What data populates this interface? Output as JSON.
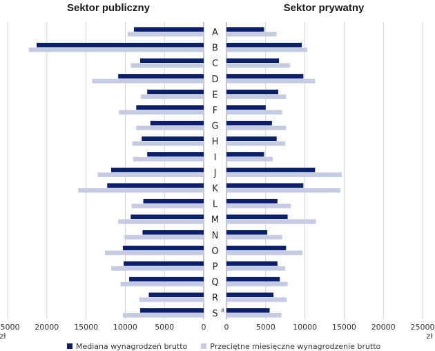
{
  "colors": {
    "median": "#0b1f6b",
    "mean": "#c5cbe3",
    "grid": "#c8c8c8",
    "axis": "#888888"
  },
  "chart_data": {
    "type": "bar",
    "orientation": "horizontal-butterfly",
    "panels": [
      {
        "title": "Sektor publiczny",
        "side": "left"
      },
      {
        "title": "Sektor prywatny",
        "side": "right"
      }
    ],
    "categories": [
      "A",
      "B",
      "C",
      "D",
      "E",
      "F",
      "G",
      "H",
      "I",
      "J",
      "K",
      "L",
      "M",
      "N",
      "O",
      "P",
      "Q",
      "R",
      "S"
    ],
    "category_labels": [
      "A",
      "B",
      "C",
      "D",
      "E",
      "F",
      "G",
      "H",
      "I",
      "J",
      "K",
      "L",
      "M",
      "N",
      "O",
      "P",
      "Q",
      "R",
      "S"
    ],
    "category_superscripts": {
      "S": "a"
    },
    "xlim": [
      0,
      25000
    ],
    "x_ticks": [
      0,
      5000,
      10000,
      15000,
      20000,
      25000
    ],
    "x_tick_labels": [
      "0",
      "5000",
      "10000",
      "15000",
      "20000",
      "25000"
    ],
    "unit_label": "zł",
    "grid": true,
    "legend_position": "bottom",
    "series": [
      {
        "name": "Mediana wynagrodzeń brutto",
        "color": "#0b1f6b",
        "public": [
          8900,
          21300,
          8100,
          10900,
          7200,
          8600,
          6800,
          7900,
          7200,
          11800,
          12300,
          7700,
          9300,
          7800,
          10300,
          10200,
          9500,
          7000,
          8100
        ],
        "private": [
          4800,
          9600,
          6700,
          9800,
          6600,
          5000,
          5800,
          6400,
          4800,
          11300,
          9800,
          6500,
          7800,
          5200,
          7600,
          6500,
          6800,
          6000,
          5500
        ]
      },
      {
        "name": "Przeciętne miesięczne wynagrodzenie brutto",
        "color": "#c5cbe3",
        "public": [
          9700,
          22300,
          9300,
          14200,
          8000,
          10800,
          8600,
          9100,
          9000,
          13500,
          16000,
          9200,
          10900,
          10100,
          12600,
          11800,
          10600,
          8200,
          10300
        ],
        "private": [
          6400,
          10300,
          8100,
          11300,
          7600,
          7100,
          7600,
          7500,
          5900,
          14700,
          14500,
          8200,
          11400,
          7100,
          9700,
          7500,
          7800,
          7700,
          7000
        ]
      }
    ]
  }
}
